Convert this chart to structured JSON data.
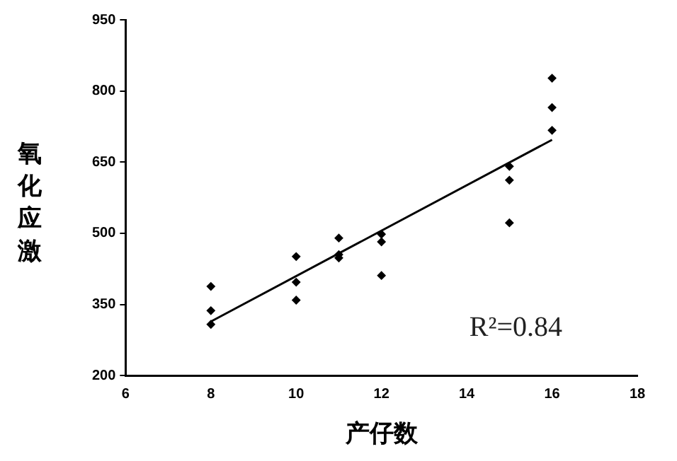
{
  "chart_data": {
    "type": "scatter",
    "xlabel": "产仔数",
    "ylabel": "氧化应激",
    "xlim": [
      6,
      18
    ],
    "xticks": [
      6,
      8,
      10,
      12,
      14,
      16,
      18
    ],
    "ylim": [
      200,
      950
    ],
    "yticks": [
      200,
      350,
      500,
      650,
      800,
      950
    ],
    "grid": false,
    "legend": false,
    "marker": "diamond",
    "annotations": [
      "R²=0.84"
    ],
    "series": [
      {
        "type": "scatter",
        "color": "#000000",
        "x": [
          8,
          8,
          8,
          10,
          10,
          10,
          11,
          11,
          11,
          12,
          12,
          12,
          15,
          15,
          15,
          16,
          16,
          16
        ],
        "values": [
          388,
          337,
          308,
          451,
          397,
          359,
          490,
          455,
          448,
          498,
          482,
          411,
          641,
          612,
          522,
          827,
          765,
          717
        ]
      },
      {
        "type": "line",
        "color": "#000000",
        "x": [
          8,
          16
        ],
        "values": [
          314,
          697
        ],
        "marker": "none",
        "line_style": "solid"
      }
    ]
  }
}
